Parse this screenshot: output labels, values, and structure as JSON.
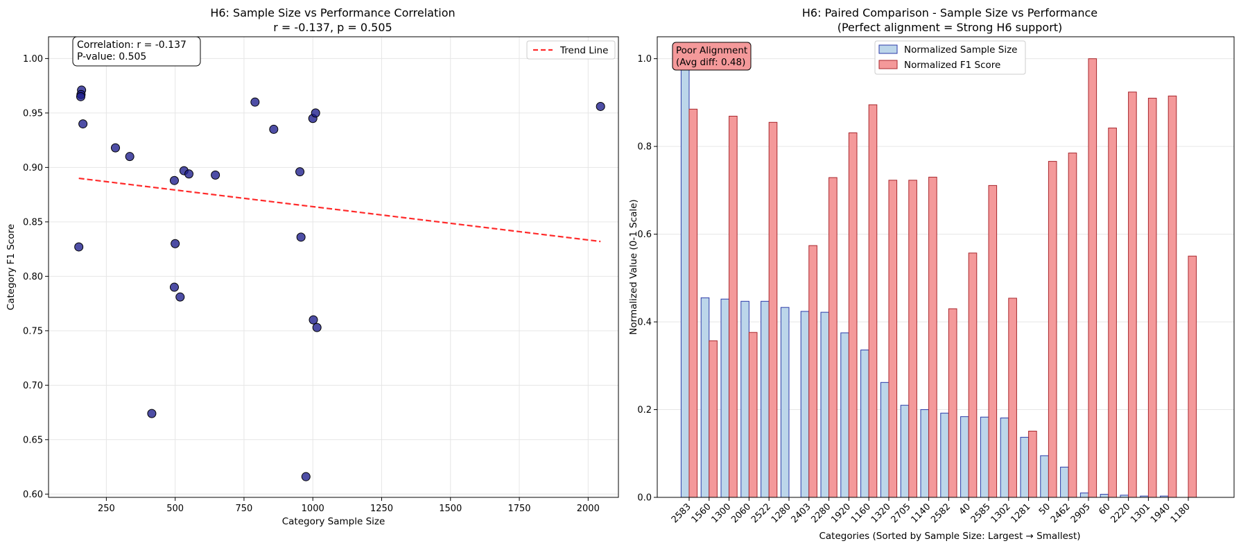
{
  "chart_data": [
    {
      "type": "scatter",
      "title": "H6: Sample Size vs Performance Correlation",
      "subtitle": "r = -0.137, p = 0.505",
      "xlabel": "Category Sample Size",
      "ylabel": "Category F1 Score",
      "xlim": [
        40,
        2110
      ],
      "ylim": [
        0.597,
        1.02
      ],
      "xticks": [
        250,
        500,
        750,
        1000,
        1250,
        1500,
        1750,
        2000
      ],
      "yticks": [
        0.6,
        0.65,
        0.7,
        0.75,
        0.8,
        0.85,
        0.9,
        0.95,
        1.0
      ],
      "ytick_labels": [
        "0.60",
        "0.65",
        "0.70",
        "0.75",
        "0.80",
        "0.85",
        "0.90",
        "0.95",
        "1.00"
      ],
      "grid": true,
      "legend_position": "top-right",
      "points": [
        {
          "x": 2045,
          "y": 0.956
        },
        {
          "x": 160,
          "y": 0.971
        },
        {
          "x": 158,
          "y": 0.967
        },
        {
          "x": 157,
          "y": 0.965
        },
        {
          "x": 165,
          "y": 0.94
        },
        {
          "x": 150,
          "y": 0.827
        },
        {
          "x": 283,
          "y": 0.918
        },
        {
          "x": 335,
          "y": 0.91
        },
        {
          "x": 415,
          "y": 0.674
        },
        {
          "x": 497,
          "y": 0.888
        },
        {
          "x": 500,
          "y": 0.83
        },
        {
          "x": 497,
          "y": 0.79
        },
        {
          "x": 518,
          "y": 0.781
        },
        {
          "x": 532,
          "y": 0.897
        },
        {
          "x": 550,
          "y": 0.894
        },
        {
          "x": 646,
          "y": 0.893
        },
        {
          "x": 790,
          "y": 0.96
        },
        {
          "x": 858,
          "y": 0.935
        },
        {
          "x": 953,
          "y": 0.896
        },
        {
          "x": 957,
          "y": 0.836
        },
        {
          "x": 975,
          "y": 0.616
        },
        {
          "x": 1000,
          "y": 0.945
        },
        {
          "x": 1010,
          "y": 0.95
        },
        {
          "x": 1002,
          "y": 0.76
        },
        {
          "x": 1015,
          "y": 0.753
        }
      ],
      "trend_line": {
        "x": [
          150,
          2045
        ],
        "y": [
          0.89,
          0.832
        ],
        "name": "Trend Line",
        "color": "#ff2a2a"
      },
      "point_color": "#1c1c8c",
      "annotation": [
        "Correlation: r = -0.137",
        "P-value: 0.505"
      ]
    },
    {
      "type": "bar",
      "title": "H6: Paired Comparison - Sample Size vs Performance",
      "subtitle": "(Perfect alignment = Strong H6 support)",
      "xlabel": "Categories (Sorted by Sample Size: Largest → Smallest)",
      "ylabel": "Normalized Value (0-1 Scale)",
      "ylim": [
        0,
        1.05
      ],
      "yticks": [
        0.0,
        0.2,
        0.4,
        0.6,
        0.8,
        1.0
      ],
      "ytick_labels": [
        "0.0",
        "0.2",
        "0.4",
        "0.6",
        "0.8",
        "1.0"
      ],
      "grid": true,
      "legend_position": "top-center",
      "categories": [
        "2583",
        "1560",
        "1300",
        "2060",
        "2522",
        "1280",
        "2403",
        "2280",
        "1920",
        "1160",
        "1320",
        "2705",
        "1140",
        "2582",
        "40",
        "2585",
        "1302",
        "1281",
        "50",
        "2462",
        "2905",
        "60",
        "2220",
        "1301",
        "1940",
        "1180"
      ],
      "series": [
        {
          "name": "Normalized Sample Size",
          "color": "#bcd6ea",
          "edge": "#2b3aa8",
          "values": [
            1.0,
            0.455,
            0.452,
            0.447,
            0.447,
            0.433,
            0.424,
            0.422,
            0.375,
            0.336,
            0.262,
            0.21,
            0.2,
            0.192,
            0.184,
            0.183,
            0.181,
            0.137,
            0.095,
            0.069,
            0.01,
            0.007,
            0.005,
            0.003,
            0.003,
            0.0
          ]
        },
        {
          "name": "Normalized F1 Score",
          "color": "#f4999a",
          "edge": "#a8262c",
          "values": [
            0.885,
            0.357,
            0.869,
            0.376,
            0.855,
            null,
            0.574,
            0.729,
            0.831,
            0.895,
            0.723,
            0.723,
            0.73,
            0.43,
            0.557,
            0.711,
            0.454,
            0.151,
            0.766,
            0.785,
            1.0,
            0.842,
            0.924,
            0.91,
            0.915,
            0.55
          ]
        }
      ],
      "annotation": [
        "Poor Alignment",
        "(Avg diff: 0.48)"
      ]
    }
  ]
}
